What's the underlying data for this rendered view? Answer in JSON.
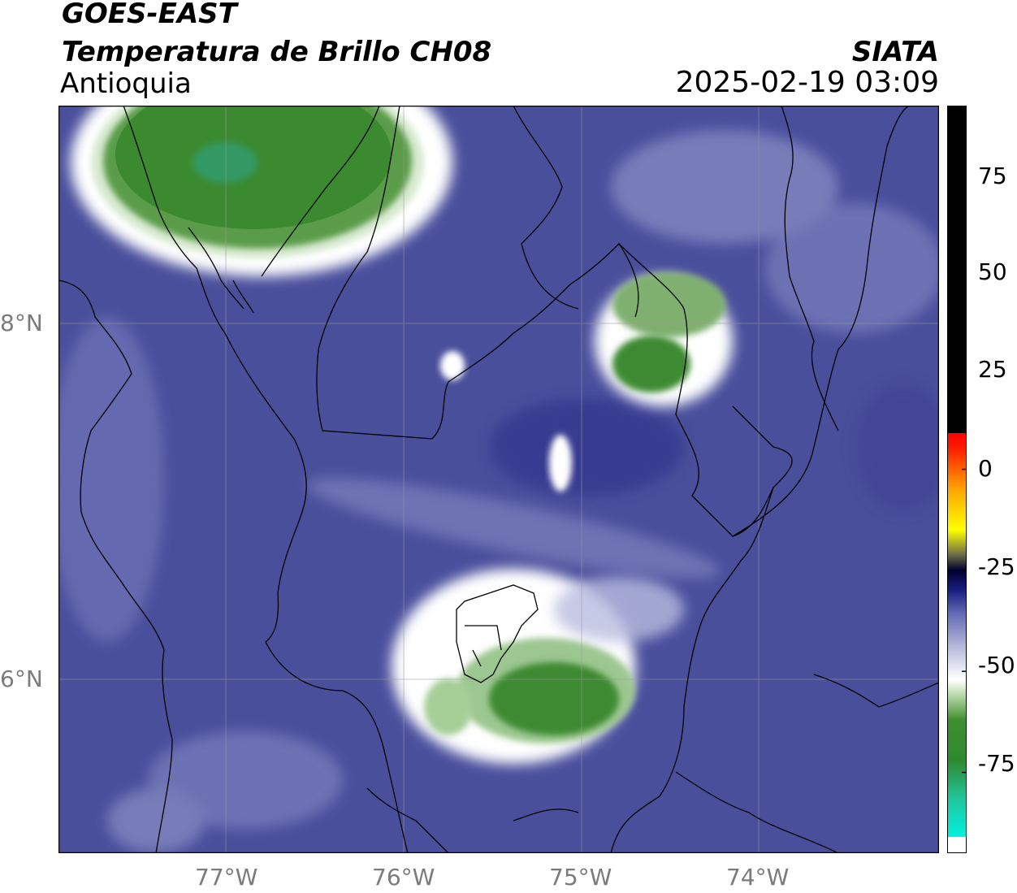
{
  "header": {
    "satellite": "GOES-EAST",
    "product": "Temperatura de Brillo CH08",
    "region": "Antioquia",
    "organization": "SIATA",
    "datetime": "2025-02-19 03:09"
  },
  "map": {
    "lon_range": [
      -77.95,
      -73.0
    ],
    "lat_range": [
      5.05,
      9.25
    ],
    "lat_ticks": [
      {
        "value": 8,
        "label": "8°N"
      },
      {
        "value": 6,
        "label": "6°N"
      }
    ],
    "lon_ticks": [
      {
        "value": -77,
        "label": "77°W"
      },
      {
        "value": -76,
        "label": "76°W"
      },
      {
        "value": -75,
        "label": "75°W"
      },
      {
        "value": -74,
        "label": "74°W"
      }
    ],
    "background_color": "#4a4f9c",
    "cloud_features": [
      {
        "name": "northwest-cold-cloud-cluster",
        "lon": -76.75,
        "lat": 8.95
      },
      {
        "name": "northeast-cold-cloud-cluster",
        "lon": -74.5,
        "lat": 7.8
      },
      {
        "name": "central-cold-cloud-cluster",
        "lon": -75.15,
        "lat": 5.95
      }
    ]
  },
  "colorbar": {
    "min": -95,
    "max": 90,
    "ticks": [
      "75",
      "50",
      "25",
      "0",
      "-25",
      "-50",
      "-75"
    ],
    "tick_values": [
      75,
      50,
      25,
      0,
      -25,
      -50,
      -75
    ],
    "stops": [
      {
        "value": -95,
        "color": "#ffffff"
      },
      {
        "value": -91,
        "color": "#ffffff"
      },
      {
        "value": -91,
        "color": "#00f0e0"
      },
      {
        "value": -82,
        "color": "#20c8a0"
      },
      {
        "value": -72,
        "color": "#2e8a2e"
      },
      {
        "value": -62,
        "color": "#3f8f2f"
      },
      {
        "value": -56,
        "color": "#b8d8a8"
      },
      {
        "value": -52,
        "color": "#ffffff"
      },
      {
        "value": -45,
        "color": "#c0c4e0"
      },
      {
        "value": -35,
        "color": "#5c62b0"
      },
      {
        "value": -30,
        "color": "#1a1f80"
      },
      {
        "value": -25,
        "color": "#000030"
      },
      {
        "value": -21,
        "color": "#707048"
      },
      {
        "value": -15,
        "color": "#ffff00"
      },
      {
        "value": -5,
        "color": "#ffa500"
      },
      {
        "value": 5,
        "color": "#ff2000"
      },
      {
        "value": 9,
        "color": "#ff0000"
      },
      {
        "value": 9,
        "color": "#000000"
      },
      {
        "value": 90,
        "color": "#000000"
      }
    ]
  }
}
